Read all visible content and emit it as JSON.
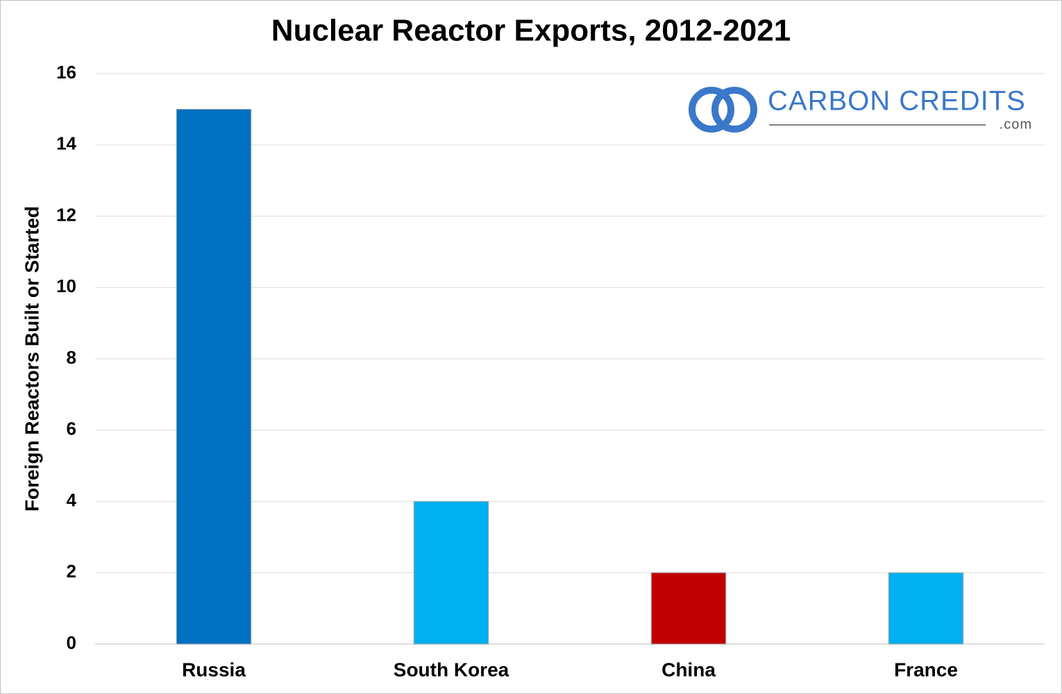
{
  "chart_data": {
    "type": "bar",
    "title": "Nuclear Reactor Exports, 2012-2021",
    "y_label": "Foreign Reactors Built or Started",
    "categories": [
      "Russia",
      "South Korea",
      "China",
      "France"
    ],
    "values": [
      15,
      4,
      2,
      2
    ],
    "colors": [
      "#0070c0",
      "#00b0f0",
      "#c00000",
      "#00b0f0"
    ],
    "ylim": [
      0,
      16
    ],
    "yticks": [
      0,
      2,
      4,
      6,
      8,
      10,
      12,
      14,
      16
    ],
    "grid": true,
    "watermark": {
      "text": "CARBON CREDITS",
      "subtext": ".com"
    }
  }
}
